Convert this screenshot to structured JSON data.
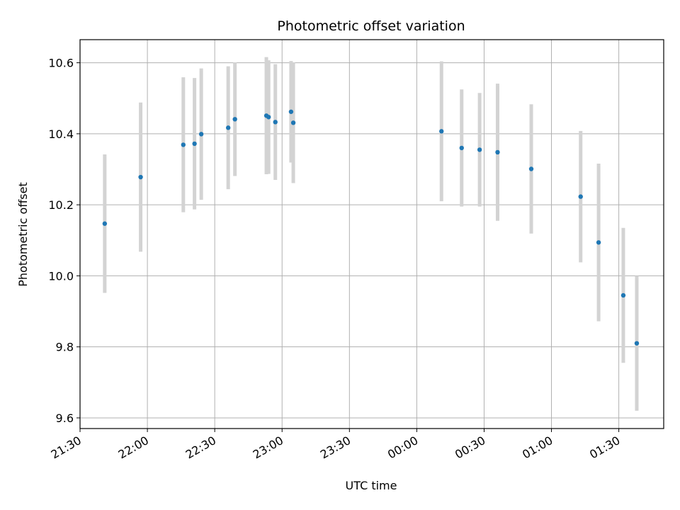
{
  "chart_data": {
    "type": "scatter",
    "title": "Photometric offset variation",
    "xlabel": "UTC time",
    "ylabel": "Photometric offset",
    "x_ticks": [
      "21:30",
      "22:00",
      "22:30",
      "23:00",
      "23:30",
      "00:00",
      "00:30",
      "01:00",
      "01:30"
    ],
    "y_ticks": [
      "9.6",
      "9.8",
      "10.0",
      "10.2",
      "10.4",
      "10.6"
    ],
    "xlim": [
      "21:30",
      "01:50"
    ],
    "ylim": [
      9.57,
      10.665
    ],
    "grid": true,
    "marker_color": "#1f77b4",
    "errorbar_color": "#d3d3d3",
    "points": [
      {
        "t": "21:41",
        "y": 10.147,
        "err": 0.195
      },
      {
        "t": "21:57",
        "y": 10.278,
        "err": 0.21
      },
      {
        "t": "22:16",
        "y": 10.369,
        "err": 0.19
      },
      {
        "t": "22:21",
        "y": 10.372,
        "err": 0.185
      },
      {
        "t": "22:24",
        "y": 10.399,
        "err": 0.185
      },
      {
        "t": "22:36",
        "y": 10.417,
        "err": 0.173
      },
      {
        "t": "22:39",
        "y": 10.441,
        "err": 0.16
      },
      {
        "t": "22:53",
        "y": 10.451,
        "err": 0.165
      },
      {
        "t": "22:54",
        "y": 10.447,
        "err": 0.16
      },
      {
        "t": "22:57",
        "y": 10.433,
        "err": 0.163
      },
      {
        "t": "23:04",
        "y": 10.462,
        "err": 0.143
      },
      {
        "t": "23:05",
        "y": 10.431,
        "err": 0.17
      },
      {
        "t": "00:11",
        "y": 10.407,
        "err": 0.197
      },
      {
        "t": "00:20",
        "y": 10.36,
        "err": 0.165
      },
      {
        "t": "00:28",
        "y": 10.355,
        "err": 0.16
      },
      {
        "t": "00:36",
        "y": 10.348,
        "err": 0.193
      },
      {
        "t": "00:51",
        "y": 10.301,
        "err": 0.182
      },
      {
        "t": "01:13",
        "y": 10.223,
        "err": 0.185
      },
      {
        "t": "01:21",
        "y": 10.094,
        "err": 0.222
      },
      {
        "t": "01:32",
        "y": 9.945,
        "err": 0.19
      },
      {
        "t": "01:38",
        "y": 9.81,
        "err": 0.19
      }
    ]
  }
}
